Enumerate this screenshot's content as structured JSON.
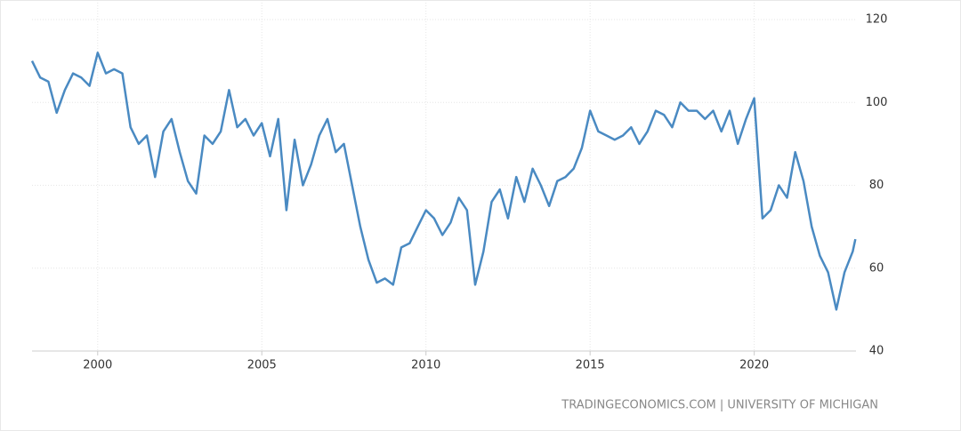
{
  "chart_data": {
    "type": "line",
    "source": "TRADINGECONOMICS.COM | UNIVERSITY OF MICHIGAN",
    "x": [
      1998.0,
      1998.25,
      1998.5,
      1998.75,
      1999.0,
      1999.25,
      1999.5,
      1999.75,
      2000.0,
      2000.25,
      2000.5,
      2000.75,
      2001.0,
      2001.25,
      2001.5,
      2001.75,
      2002.0,
      2002.25,
      2002.5,
      2002.75,
      2003.0,
      2003.25,
      2003.5,
      2003.75,
      2004.0,
      2004.25,
      2004.5,
      2004.75,
      2005.0,
      2005.25,
      2005.5,
      2005.75,
      2006.0,
      2006.25,
      2006.5,
      2006.75,
      2007.0,
      2007.25,
      2007.5,
      2007.75,
      2008.0,
      2008.25,
      2008.5,
      2008.75,
      2009.0,
      2009.25,
      2009.5,
      2009.75,
      2010.0,
      2010.25,
      2010.5,
      2010.75,
      2011.0,
      2011.25,
      2011.5,
      2011.75,
      2012.0,
      2012.25,
      2012.5,
      2012.75,
      2013.0,
      2013.25,
      2013.5,
      2013.75,
      2014.0,
      2014.25,
      2014.5,
      2014.75,
      2015.0,
      2015.25,
      2015.5,
      2015.75,
      2016.0,
      2016.25,
      2016.5,
      2016.75,
      2017.0,
      2017.25,
      2017.5,
      2017.75,
      2018.0,
      2018.25,
      2018.5,
      2018.75,
      2019.0,
      2019.25,
      2019.5,
      2019.75,
      2020.0,
      2020.25,
      2020.5,
      2020.75,
      2021.0,
      2021.25,
      2021.5,
      2021.75,
      2022.0,
      2022.25,
      2022.5,
      2022.75,
      2023.0,
      2023.08
    ],
    "values": [
      110,
      106,
      105,
      97.5,
      103,
      107,
      106,
      104,
      112,
      107,
      108,
      107,
      94,
      90,
      92,
      82,
      93,
      96,
      88,
      81,
      78,
      92,
      90,
      93,
      103,
      94,
      96,
      92,
      95,
      87,
      96,
      74,
      91,
      80,
      85,
      92,
      96,
      88,
      90,
      80,
      70,
      62,
      56.5,
      57.5,
      56,
      65,
      66,
      70,
      74,
      72,
      68,
      71,
      77,
      74,
      56,
      64,
      76,
      79,
      72,
      82,
      76,
      84,
      80,
      75,
      81,
      82,
      84,
      89,
      98,
      93,
      92,
      91,
      92,
      94,
      90,
      93,
      98,
      97,
      94,
      100,
      98,
      98,
      96,
      98,
      93,
      98,
      90,
      96,
      101,
      72,
      74,
      80,
      77,
      88,
      81,
      70,
      63,
      59,
      50,
      59,
      64,
      67
    ],
    "color": "#4a8ac2",
    "xlim": [
      1998.0,
      2023.1
    ],
    "xticks": [
      2000,
      2005,
      2010,
      2015,
      2020
    ],
    "ylim": [
      40,
      120
    ],
    "yticks": [
      40,
      60,
      80,
      100,
      120
    ],
    "grid": true
  }
}
